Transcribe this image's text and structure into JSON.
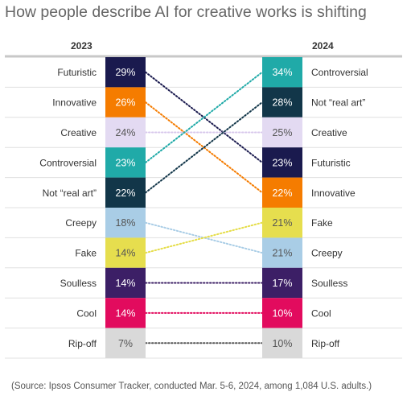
{
  "title": "How people describe AI for creative works is shifting",
  "source": "(Source: Ipsos Consumer Tracker, conducted Mar. 5-6, 2024, among 1,084 U.S. adults.)",
  "chart_data": {
    "type": "slope",
    "years": [
      "2023",
      "2024"
    ],
    "left": [
      {
        "label": "Futuristic",
        "value": 29,
        "display": "29%",
        "color": "#1a1a4e",
        "text_color": "#ffffff"
      },
      {
        "label": "Innovative",
        "value": 26,
        "display": "26%",
        "color": "#f57c00",
        "text_color": "#ffffff"
      },
      {
        "label": "Creative",
        "value": 24,
        "display": "24%",
        "color": "#e3daf2",
        "text_color": "#555555"
      },
      {
        "label": "Controversial",
        "value": 23,
        "display": "23%",
        "color": "#20aaa8",
        "text_color": "#ffffff"
      },
      {
        "label": "Not “real art”",
        "value": 22,
        "display": "22%",
        "color": "#123649",
        "text_color": "#ffffff"
      },
      {
        "label": "Creepy",
        "value": 18,
        "display": "18%",
        "color": "#a9cde6",
        "text_color": "#555555"
      },
      {
        "label": "Fake",
        "value": 14,
        "display": "14%",
        "color": "#e6de4e",
        "text_color": "#555555"
      },
      {
        "label": "Soulless",
        "value": 14,
        "display": "14%",
        "color": "#3c1f66",
        "text_color": "#ffffff"
      },
      {
        "label": "Cool",
        "value": 14,
        "display": "14%",
        "color": "#e20b5e",
        "text_color": "#ffffff"
      },
      {
        "label": "Rip-off",
        "value": 7,
        "display": "7%",
        "color": "#d9d9d9",
        "text_color": "#555555"
      }
    ],
    "right": [
      {
        "label": "Controversial",
        "value": 34,
        "display": "34%",
        "color": "#20aaa8",
        "text_color": "#ffffff"
      },
      {
        "label": "Not “real art”",
        "value": 28,
        "display": "28%",
        "color": "#123649",
        "text_color": "#ffffff"
      },
      {
        "label": "Creative",
        "value": 25,
        "display": "25%",
        "color": "#e3daf2",
        "text_color": "#555555"
      },
      {
        "label": "Futuristic",
        "value": 23,
        "display": "23%",
        "color": "#1a1a4e",
        "text_color": "#ffffff"
      },
      {
        "label": "Innovative",
        "value": 22,
        "display": "22%",
        "color": "#f57c00",
        "text_color": "#ffffff"
      },
      {
        "label": "Fake",
        "value": 21,
        "display": "21%",
        "color": "#e6de4e",
        "text_color": "#555555"
      },
      {
        "label": "Creepy",
        "value": 21,
        "display": "21%",
        "color": "#a9cde6",
        "text_color": "#555555"
      },
      {
        "label": "Soulless",
        "value": 17,
        "display": "17%",
        "color": "#3c1f66",
        "text_color": "#ffffff"
      },
      {
        "label": "Cool",
        "value": 10,
        "display": "10%",
        "color": "#e20b5e",
        "text_color": "#ffffff"
      },
      {
        "label": "Rip-off",
        "value": 10,
        "display": "10%",
        "color": "#d9d9d9",
        "text_color": "#555555"
      }
    ]
  }
}
